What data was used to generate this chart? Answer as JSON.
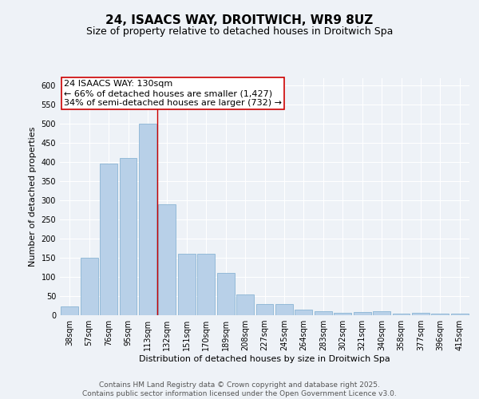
{
  "title_line1": "24, ISAACS WAY, DROITWICH, WR9 8UZ",
  "title_line2": "Size of property relative to detached houses in Droitwich Spa",
  "xlabel": "Distribution of detached houses by size in Droitwich Spa",
  "ylabel": "Number of detached properties",
  "categories": [
    "38sqm",
    "57sqm",
    "76sqm",
    "95sqm",
    "113sqm",
    "132sqm",
    "151sqm",
    "170sqm",
    "189sqm",
    "208sqm",
    "227sqm",
    "245sqm",
    "264sqm",
    "283sqm",
    "302sqm",
    "321sqm",
    "340sqm",
    "358sqm",
    "377sqm",
    "396sqm",
    "415sqm"
  ],
  "values": [
    22,
    150,
    395,
    410,
    500,
    290,
    160,
    160,
    110,
    55,
    30,
    30,
    15,
    10,
    7,
    9,
    10,
    4,
    6,
    5,
    4
  ],
  "bar_color": "#b8d0e8",
  "bar_edge_color": "#8ab4d4",
  "vline_color": "#cc0000",
  "vline_x_idx": 4.5,
  "annotation_text": "24 ISAACS WAY: 130sqm\n← 66% of detached houses are smaller (1,427)\n34% of semi-detached houses are larger (732) →",
  "annotation_box_color": "#ffffff",
  "annotation_box_edge": "#cc0000",
  "ylim": [
    0,
    620
  ],
  "yticks": [
    0,
    50,
    100,
    150,
    200,
    250,
    300,
    350,
    400,
    450,
    500,
    550,
    600
  ],
  "background_color": "#eef2f7",
  "grid_color": "#ffffff",
  "footer_text": "Contains HM Land Registry data © Crown copyright and database right 2025.\nContains public sector information licensed under the Open Government Licence v3.0.",
  "title_fontsize": 11,
  "subtitle_fontsize": 9,
  "axis_label_fontsize": 8,
  "tick_fontsize": 7,
  "annotation_fontsize": 8,
  "footer_fontsize": 6.5
}
